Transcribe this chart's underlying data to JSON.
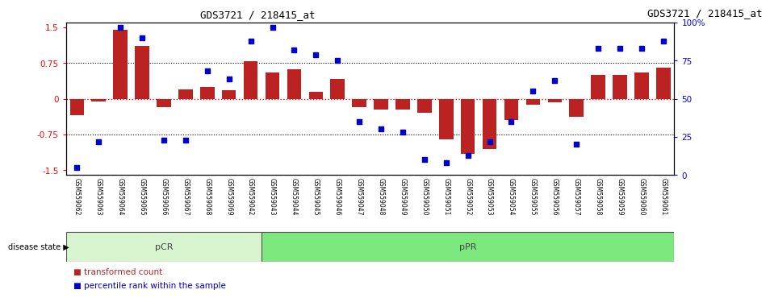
{
  "title": "GDS3721 / 218415_at",
  "samples": [
    "GSM559062",
    "GSM559063",
    "GSM559064",
    "GSM559065",
    "GSM559066",
    "GSM559067",
    "GSM559068",
    "GSM559069",
    "GSM559042",
    "GSM559043",
    "GSM559044",
    "GSM559045",
    "GSM559046",
    "GSM559047",
    "GSM559048",
    "GSM559049",
    "GSM559050",
    "GSM559051",
    "GSM559052",
    "GSM559053",
    "GSM559054",
    "GSM559055",
    "GSM559056",
    "GSM559057",
    "GSM559058",
    "GSM559059",
    "GSM559060",
    "GSM559061"
  ],
  "bar_values": [
    -0.35,
    -0.05,
    1.45,
    1.1,
    -0.18,
    0.2,
    0.25,
    0.18,
    0.78,
    0.55,
    0.62,
    0.15,
    0.42,
    -0.18,
    -0.22,
    -0.22,
    -0.3,
    -0.85,
    -1.15,
    -1.05,
    -0.45,
    -0.12,
    -0.08,
    -0.38,
    0.5,
    0.5,
    0.55,
    0.65
  ],
  "percentile_values": [
    5,
    22,
    97,
    90,
    23,
    23,
    68,
    63,
    88,
    97,
    82,
    79,
    75,
    35,
    30,
    28,
    10,
    8,
    13,
    22,
    35,
    55,
    62,
    20,
    83,
    83,
    83,
    88
  ],
  "pCR_count": 9,
  "pPR_count": 19,
  "bar_color": "#bb2222",
  "dot_color": "#0000cc",
  "ylim_left": [
    -1.6,
    1.6
  ],
  "ylim_right": [
    0,
    100
  ],
  "yticks_left": [
    -1.5,
    -0.75,
    0,
    0.75,
    1.5
  ],
  "yticks_right": [
    0,
    25,
    50,
    75,
    100
  ],
  "ytick_labels_right": [
    "0",
    "25",
    "50",
    "75",
    "100%"
  ],
  "hline_zero_color": "red",
  "hline_dotted_color": "black",
  "legend_items": [
    "transformed count",
    "percentile rank within the sample"
  ],
  "legend_colors": [
    "#bb2222",
    "#0000cc"
  ],
  "disease_state_label": "disease state",
  "pCR_label": "pCR",
  "pPR_label": "pPR",
  "pCR_color": "#d8f5d0",
  "pPR_color": "#7de87d",
  "tick_label_bg": "#cccccc"
}
